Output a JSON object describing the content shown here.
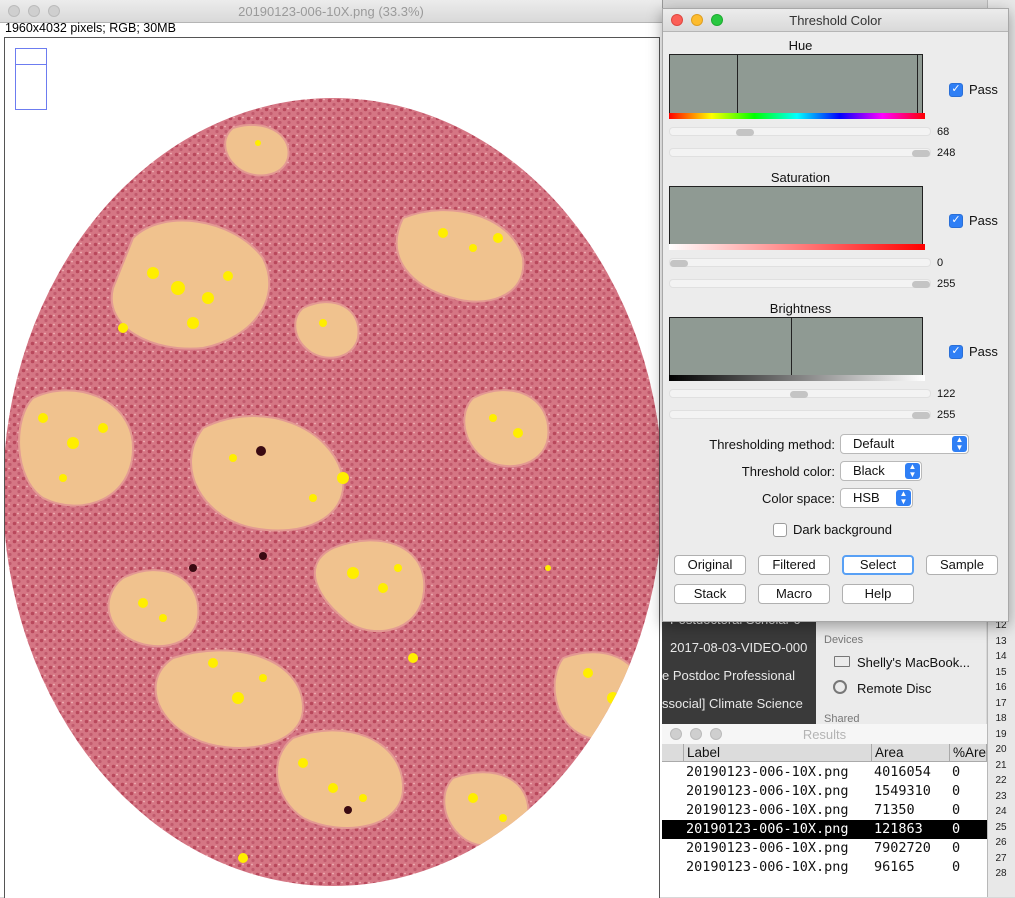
{
  "image_window": {
    "title": "20190123-006-10X.png (33.3%)",
    "info": "1960x4032 pixels; RGB; 30MB"
  },
  "threshold": {
    "title": "Threshold Color",
    "hue": {
      "label": "Hue",
      "pass": "Pass",
      "min": "68",
      "max": "248"
    },
    "saturation": {
      "label": "Saturation",
      "pass": "Pass",
      "min": "0",
      "max": "255"
    },
    "brightness": {
      "label": "Brightness",
      "pass": "Pass",
      "min": "122",
      "max": "255"
    },
    "method_label": "Thresholding method:",
    "method_value": "Default",
    "color_label": "Threshold color:",
    "color_value": "Black",
    "space_label": "Color space:",
    "space_value": "HSB",
    "dark_bg": "Dark background",
    "buttons": [
      "Original",
      "Filtered",
      "Select",
      "Sample",
      "Stack",
      "Macro",
      "Help"
    ],
    "checkmark": "✓"
  },
  "background": {
    "dark_lines": [
      "Postdoctoral Scholar c",
      "2017-08-03-VIDEO-000",
      "e Postdoc Professional",
      "ssocial] Climate Science"
    ],
    "devices_header": "Devices",
    "device_1": "Shelly's MacBook...",
    "device_2": "Remote Disc",
    "shared_header": "Shared",
    "row_numbers": [
      "12",
      "13",
      "14",
      "15",
      "16",
      "17",
      "18",
      "19",
      "20",
      "21",
      "22",
      "23",
      "24",
      "25",
      "26",
      "27",
      "28"
    ]
  },
  "results": {
    "title": "Results",
    "headers": [
      "Label",
      "Area",
      "%Are"
    ],
    "rows": [
      {
        "label": "20190123-006-10X.png",
        "area": "4016054",
        "pct": "0"
      },
      {
        "label": "20190123-006-10X.png",
        "area": "1549310",
        "pct": "0"
      },
      {
        "label": "20190123-006-10X.png",
        "area": "71350",
        "pct": "0"
      },
      {
        "label": "20190123-006-10X.png",
        "area": "121863",
        "pct": "0"
      },
      {
        "label": "20190123-006-10X.png",
        "area": "7902720",
        "pct": "0"
      },
      {
        "label": "20190123-006-10X.png",
        "area": "96165",
        "pct": "0"
      }
    ],
    "selected_row": 3
  },
  "colors": {
    "tissue": "#d97a86",
    "lumen": "#f0c28e",
    "threshold_mark": "#ffee00",
    "histogram": "#8f9a93",
    "accent": "#2f7ff5"
  }
}
